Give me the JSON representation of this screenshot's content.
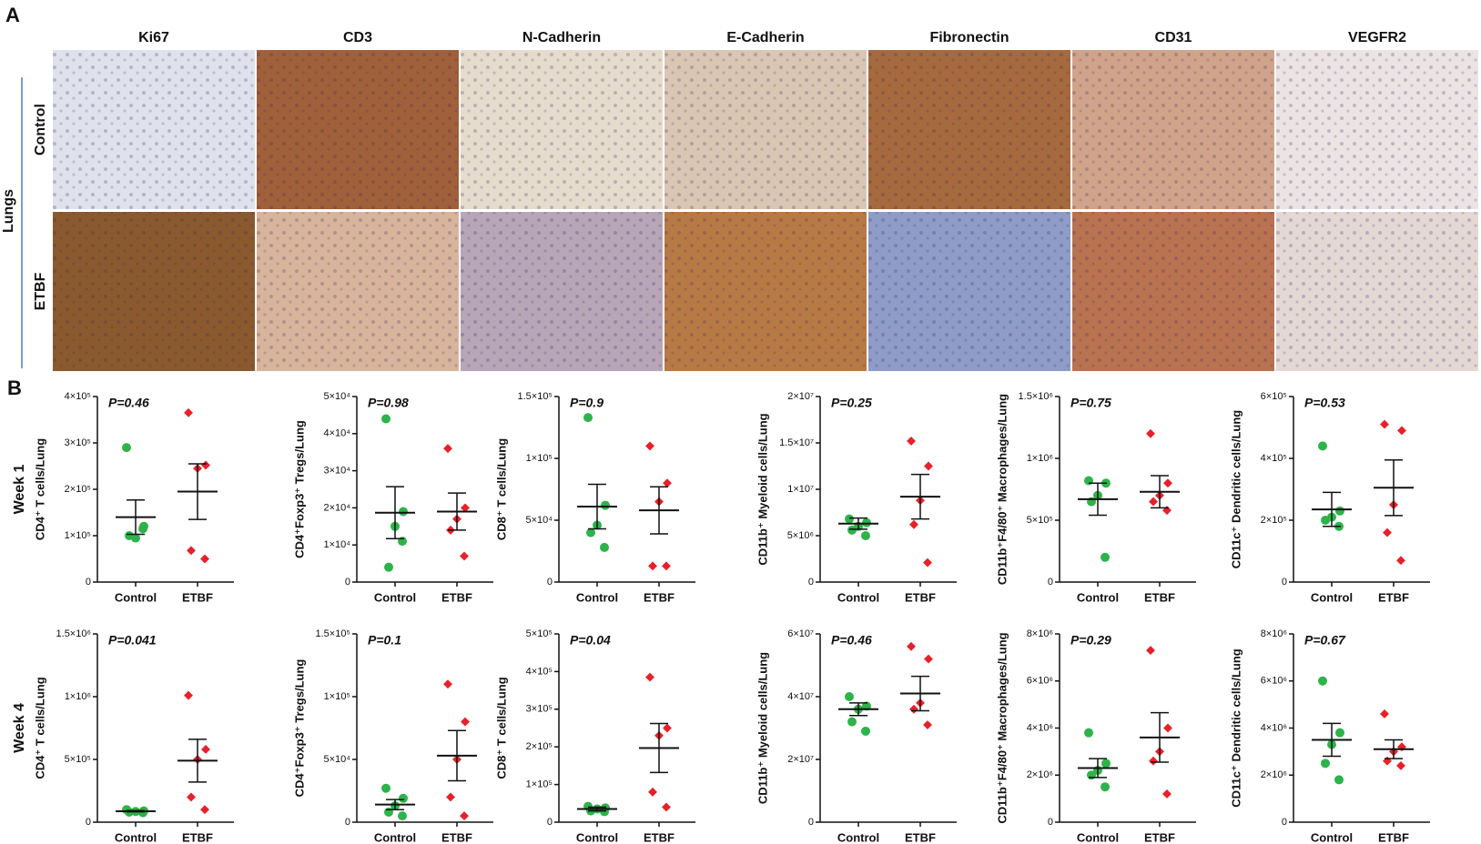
{
  "panel_a": {
    "label": "A",
    "stains": [
      "Ki67",
      "CD3",
      "N-Cadherin",
      "E-Cadherin",
      "Fibronectin",
      "CD31",
      "VEGFR2"
    ],
    "organ": "Lungs",
    "groups": [
      "Control",
      "ETBF"
    ]
  },
  "panel_b": {
    "label": "B",
    "weeks": [
      "Week 1",
      "Week 4"
    ]
  },
  "chart_data": [
    {
      "type": "dotplot",
      "p_value": "P=0.46",
      "ylabel": "CD4⁺ T cells/Lung",
      "categories": [
        "Control",
        "ETBF"
      ],
      "colors": [
        "#2db34a",
        "#e8202a"
      ],
      "values": [
        [
          290000,
          120000,
          95000,
          100000,
          115000
        ],
        [
          365000,
          252000,
          245000,
          68000,
          50000
        ]
      ],
      "means": [
        140000,
        195000
      ],
      "errors": [
        37000,
        60000
      ],
      "ylim": [
        0,
        400000
      ],
      "yticks": [
        0,
        {
          "value": 100000,
          "label": "1×10⁵"
        },
        {
          "value": 200000,
          "label": "2×10⁵"
        },
        {
          "value": 300000,
          "label": "3×10⁵"
        },
        {
          "value": 400000,
          "label": "4×10⁵"
        }
      ]
    },
    {
      "type": "dotplot",
      "p_value": "P=0.98",
      "ylabel": "CD4⁺Foxp3⁺ Tregs/Lung",
      "categories": [
        "Control",
        "ETBF"
      ],
      "colors": [
        "#2db34a",
        "#e8202a"
      ],
      "values": [
        [
          44000,
          19000,
          15000,
          4000,
          11000
        ],
        [
          36000,
          20000,
          17000,
          14000,
          7000
        ]
      ],
      "means": [
        18700,
        19000
      ],
      "errors": [
        7000,
        5000
      ],
      "ylim": [
        0,
        50000
      ],
      "yticks": [
        0,
        {
          "value": 10000,
          "label": "1×10⁴"
        },
        {
          "value": 20000,
          "label": "2×10⁴"
        },
        {
          "value": 30000,
          "label": "3×10⁴"
        },
        {
          "value": 40000,
          "label": "4×10⁴"
        },
        {
          "value": 50000,
          "label": "5×10⁴"
        }
      ]
    },
    {
      "type": "dotplot",
      "p_value": "P=0.9",
      "ylabel": "CD8⁺ T cells/Lung",
      "categories": [
        "Control",
        "ETBF"
      ],
      "colors": [
        "#2db34a",
        "#e8202a"
      ],
      "values": [
        [
          133000,
          62000,
          46000,
          40000,
          28000
        ],
        [
          110000,
          80000,
          65000,
          13000,
          13000
        ]
      ],
      "means": [
        61000,
        58000
      ],
      "errors": [
        18000,
        19000
      ],
      "ylim": [
        0,
        150000
      ],
      "yticks": [
        0,
        {
          "value": 50000,
          "label": "5×10⁴"
        },
        {
          "value": 100000,
          "label": "1×10⁵"
        },
        {
          "value": 150000,
          "label": "1.5×10⁵"
        }
      ]
    },
    {
      "type": "dotplot",
      "p_value": "P=0.25",
      "ylabel": "CD11b⁺ Myeloid cells/Lung",
      "categories": [
        "Control",
        "ETBF"
      ],
      "colors": [
        "#2db34a",
        "#e8202a"
      ],
      "values": [
        [
          6800000,
          6400000,
          6000000,
          5600000,
          5000000
        ],
        [
          15200000,
          12500000,
          8800000,
          6200000,
          2100000
        ]
      ],
      "means": [
        6300000,
        9200000
      ],
      "errors": [
        600000,
        2400000
      ],
      "ylim": [
        0,
        20000000
      ],
      "yticks": [
        0,
        {
          "value": 5000000,
          "label": "5×10⁶"
        },
        {
          "value": 10000000,
          "label": "1×10⁷"
        },
        {
          "value": 15000000,
          "label": "1.5×10⁷"
        },
        {
          "value": 20000000,
          "label": "2×10⁷"
        }
      ]
    },
    {
      "type": "dotplot",
      "p_value": "P=0.75",
      "ylabel": "CD11b⁺F4/80⁺ Macrophages/Lung",
      "categories": [
        "Control",
        "ETBF"
      ],
      "colors": [
        "#2db34a",
        "#e8202a"
      ],
      "values": [
        [
          820000,
          800000,
          700000,
          650000,
          200000
        ],
        [
          1200000,
          800000,
          700000,
          650000,
          580000
        ]
      ],
      "means": [
        670000,
        730000
      ],
      "errors": [
        130000,
        130000
      ],
      "ylim": [
        0,
        1500000
      ],
      "yticks": [
        0,
        {
          "value": 500000,
          "label": "5×10⁵"
        },
        {
          "value": 1000000,
          "label": "1×10⁶"
        },
        {
          "value": 1500000,
          "label": "1.5×10⁶"
        }
      ]
    },
    {
      "type": "dotplot",
      "p_value": "P=0.53",
      "ylabel": "CD11c⁺ Dendritic cells/Lung",
      "categories": [
        "Control",
        "ETBF"
      ],
      "colors": [
        "#2db34a",
        "#e8202a"
      ],
      "values": [
        [
          440000,
          230000,
          210000,
          200000,
          180000
        ],
        [
          510000,
          490000,
          250000,
          160000,
          70000
        ]
      ],
      "means": [
        235000,
        305000
      ],
      "errors": [
        55000,
        90000
      ],
      "ylim": [
        0,
        600000
      ],
      "yticks": [
        0,
        {
          "value": 200000,
          "label": "2×10⁵"
        },
        {
          "value": 400000,
          "label": "4×10⁵"
        },
        {
          "value": 600000,
          "label": "6×10⁵"
        }
      ]
    },
    {
      "type": "dotplot",
      "p_value": "P=0.041",
      "ylabel": "CD4⁺ T cells/Lung",
      "categories": [
        "Control",
        "ETBF"
      ],
      "colors": [
        "#2db34a",
        "#e8202a"
      ],
      "values": [
        [
          100000,
          90000,
          85000,
          80000,
          75000
        ],
        [
          1010000,
          580000,
          500000,
          200000,
          100000
        ]
      ],
      "means": [
        87000,
        490000
      ],
      "errors": [
        5000,
        170000
      ],
      "ylim": [
        0,
        1500000
      ],
      "yticks": [
        0,
        {
          "value": 500000,
          "label": "5×10⁵"
        },
        {
          "value": 1000000,
          "label": "1×10⁶"
        },
        {
          "value": 1500000,
          "label": "1.5×10⁶"
        }
      ]
    },
    {
      "type": "dotplot",
      "p_value": "P=0.1",
      "ylabel": "CD4⁺Foxp3⁺ Tregs/Lung",
      "categories": [
        "Control",
        "ETBF"
      ],
      "colors": [
        "#2db34a",
        "#e8202a"
      ],
      "values": [
        [
          27000,
          19000,
          13000,
          8000,
          5000
        ],
        [
          110000,
          80000,
          50000,
          20000,
          5000
        ]
      ],
      "means": [
        14000,
        53000
      ],
      "errors": [
        4000,
        20000
      ],
      "ylim": [
        0,
        150000
      ],
      "yticks": [
        0,
        {
          "value": 50000,
          "label": "5×10⁴"
        },
        {
          "value": 100000,
          "label": "1×10⁵"
        },
        {
          "value": 150000,
          "label": "1.5×10⁵"
        }
      ]
    },
    {
      "type": "dotplot",
      "p_value": "P=0.04",
      "ylabel": "CD8⁺ T cells/Lung",
      "categories": [
        "Control",
        "ETBF"
      ],
      "colors": [
        "#2db34a",
        "#e8202a"
      ],
      "values": [
        [
          42000,
          38000,
          35000,
          30000,
          28000
        ],
        [
          385000,
          250000,
          230000,
          80000,
          40000
        ]
      ],
      "means": [
        35000,
        197000
      ],
      "errors": [
        5000,
        65000
      ],
      "ylim": [
        0,
        500000
      ],
      "yticks": [
        0,
        {
          "value": 100000,
          "label": "1×10⁵"
        },
        {
          "value": 200000,
          "label": "2×10⁵"
        },
        {
          "value": 300000,
          "label": "3×10⁵"
        },
        {
          "value": 400000,
          "label": "4×10⁵"
        },
        {
          "value": 500000,
          "label": "5×10⁵"
        }
      ]
    },
    {
      "type": "dotplot",
      "p_value": "P=0.46",
      "ylabel": "CD11b⁺ Myeloid cells/Lung",
      "categories": [
        "Control",
        "ETBF"
      ],
      "colors": [
        "#2db34a",
        "#e8202a"
      ],
      "values": [
        [
          40000000,
          37000000,
          36000000,
          32000000,
          29000000
        ],
        [
          56000000,
          52000000,
          38000000,
          36000000,
          31000000
        ]
      ],
      "means": [
        36000000,
        41000000
      ],
      "errors": [
        2000000,
        5500000
      ],
      "ylim": [
        0,
        60000000
      ],
      "yticks": [
        0,
        {
          "value": 20000000,
          "label": "2×10⁷"
        },
        {
          "value": 40000000,
          "label": "4×10⁷"
        },
        {
          "value": 60000000,
          "label": "6×10⁷"
        }
      ]
    },
    {
      "type": "dotplot",
      "p_value": "P=0.29",
      "ylabel": "CD11b⁺F4/80⁺ Macrophages/Lung",
      "categories": [
        "Control",
        "ETBF"
      ],
      "colors": [
        "#2db34a",
        "#e8202a"
      ],
      "values": [
        [
          3800000,
          2500000,
          2200000,
          2000000,
          1500000
        ],
        [
          7300000,
          4000000,
          3000000,
          2600000,
          1200000
        ]
      ],
      "means": [
        2300000,
        3600000
      ],
      "errors": [
        400000,
        1050000
      ],
      "ylim": [
        0,
        8000000
      ],
      "yticks": [
        0,
        {
          "value": 2000000,
          "label": "2×10⁶"
        },
        {
          "value": 4000000,
          "label": "4×10⁶"
        },
        {
          "value": 6000000,
          "label": "6×10⁶"
        },
        {
          "value": 8000000,
          "label": "8×10⁶"
        }
      ]
    },
    {
      "type": "dotplot",
      "p_value": "P=0.67",
      "ylabel": "CD11c⁺ Dendritic cells/Lung",
      "categories": [
        "Control",
        "ETBF"
      ],
      "colors": [
        "#2db34a",
        "#e8202a"
      ],
      "values": [
        [
          6000000,
          3800000,
          3300000,
          2500000,
          1800000
        ],
        [
          4600000,
          3200000,
          3000000,
          2600000,
          2400000
        ]
      ],
      "means": [
        3500000,
        3100000
      ],
      "errors": [
        700000,
        400000
      ],
      "ylim": [
        0,
        8000000
      ],
      "yticks": [
        0,
        {
          "value": 2000000,
          "label": "2×10⁶"
        },
        {
          "value": 4000000,
          "label": "4×10⁶"
        },
        {
          "value": 6000000,
          "label": "6×10⁶"
        },
        {
          "value": 8000000,
          "label": "8×10⁶"
        }
      ]
    }
  ]
}
